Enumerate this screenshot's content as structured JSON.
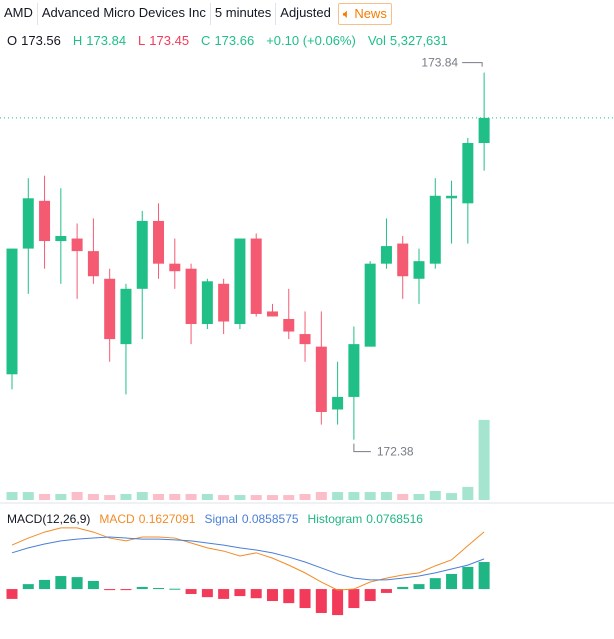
{
  "header": {
    "symbol": "AMD",
    "name": "Advanced Micro Devices Inc",
    "interval": "5 minutes",
    "adjustment": "Adjusted",
    "news": "News"
  },
  "legend": [
    {
      "label": "O",
      "value": "173.56"
    },
    {
      "label": "H",
      "value": "173.84"
    },
    {
      "label": "L",
      "value": "173.45"
    },
    {
      "label": "C",
      "value": "173.66"
    },
    {
      "value": "+0.10 (+0.06%)"
    },
    {
      "label": "Vol",
      "value": "5,327,631"
    }
  ],
  "chart_data": [
    {
      "type": "candlestick",
      "up_color": "#1fbf87",
      "down_color": "#f45b73",
      "ylim": [
        172.14,
        173.91
      ],
      "volume_ylim": [
        0,
        29600000
      ],
      "open": [
        172.64,
        173.14,
        173.33,
        173.17,
        173.18,
        173.13,
        173.02,
        172.76,
        172.98,
        173.25,
        173.08,
        173.06,
        172.84,
        173.0,
        172.84,
        173.18,
        172.89,
        172.86,
        172.8,
        172.75,
        172.5,
        172.55,
        172.75,
        173.08,
        173.16,
        173.02,
        173.08,
        173.34,
        173.32,
        173.56
      ],
      "high": [
        173.14,
        173.42,
        173.43,
        173.38,
        173.24,
        173.26,
        173.06,
        173.0,
        173.29,
        173.32,
        173.18,
        173.08,
        173.02,
        173.02,
        173.18,
        173.2,
        172.92,
        172.98,
        172.89,
        172.89,
        172.69,
        172.83,
        173.09,
        173.26,
        173.19,
        173.14,
        173.42,
        173.41,
        173.58,
        173.84
      ],
      "low": [
        172.58,
        172.96,
        173.06,
        173.0,
        172.94,
        173.0,
        172.69,
        172.56,
        172.78,
        173.02,
        172.98,
        172.76,
        172.82,
        172.8,
        172.82,
        172.87,
        172.87,
        172.78,
        172.69,
        172.44,
        172.44,
        172.38,
        172.75,
        173.06,
        172.94,
        172.92,
        173.06,
        173.16,
        173.16,
        173.45
      ],
      "close": [
        173.14,
        173.34,
        173.17,
        173.19,
        173.13,
        173.03,
        172.78,
        172.98,
        173.25,
        173.08,
        173.05,
        172.84,
        173.01,
        172.85,
        173.18,
        172.88,
        172.87,
        172.81,
        172.76,
        172.49,
        172.55,
        172.76,
        173.08,
        173.15,
        173.03,
        173.09,
        173.35,
        173.35,
        173.56,
        173.66
      ],
      "volume": [
        530000,
        530000,
        400000,
        400000,
        530000,
        400000,
        330000,
        400000,
        530000,
        400000,
        400000,
        400000,
        400000,
        330000,
        330000,
        330000,
        330000,
        330000,
        400000,
        530000,
        530000,
        530000,
        530000,
        530000,
        400000,
        400000,
        600000,
        460000,
        870000,
        5327631
      ],
      "annotations": [
        {
          "value": 173.84,
          "index": 29
        },
        {
          "value": 172.38,
          "index": 21
        }
      ]
    },
    {
      "type": "macd",
      "title": "MACD(12,26,9)",
      "ylim": [
        -0.142,
        0.239
      ],
      "series": [
        {
          "name": "MACD",
          "color": "#f28c28",
          "value_label": "0.1627091",
          "values": [
            0.125,
            0.145,
            0.162,
            0.174,
            0.174,
            0.162,
            0.145,
            0.137,
            0.148,
            0.148,
            0.145,
            0.131,
            0.117,
            0.108,
            0.094,
            0.103,
            0.088,
            0.068,
            0.046,
            0.02,
            -0.003,
            0,
            0.02,
            0.031,
            0.04,
            0.046,
            0.066,
            0.083,
            0.123,
            0.1627091
          ]
        },
        {
          "name": "Signal",
          "color": "#4a7fd6",
          "value_label": "0.0858575",
          "values": [
            0.103,
            0.117,
            0.128,
            0.137,
            0.142,
            0.145,
            0.148,
            0.145,
            0.142,
            0.142,
            0.14,
            0.137,
            0.131,
            0.125,
            0.117,
            0.111,
            0.103,
            0.091,
            0.077,
            0.06,
            0.043,
            0.031,
            0.026,
            0.026,
            0.031,
            0.037,
            0.046,
            0.057,
            0.068,
            0.0858575
          ]
        },
        {
          "name": "Histogram",
          "color": "#1fb584",
          "down_color": "#f23a5a",
          "value_label": "0.0768516",
          "values": [
            -0.028,
            0.014,
            0.026,
            0.037,
            0.034,
            0.023,
            -0.003,
            -0.003,
            0.006,
            0.003,
            0.001,
            -0.014,
            -0.023,
            -0.028,
            -0.02,
            -0.026,
            -0.034,
            -0.04,
            -0.054,
            -0.068,
            -0.074,
            -0.054,
            -0.034,
            -0.011,
            0.006,
            0.014,
            0.031,
            0.043,
            0.063,
            0.0768516
          ]
        }
      ]
    }
  ]
}
